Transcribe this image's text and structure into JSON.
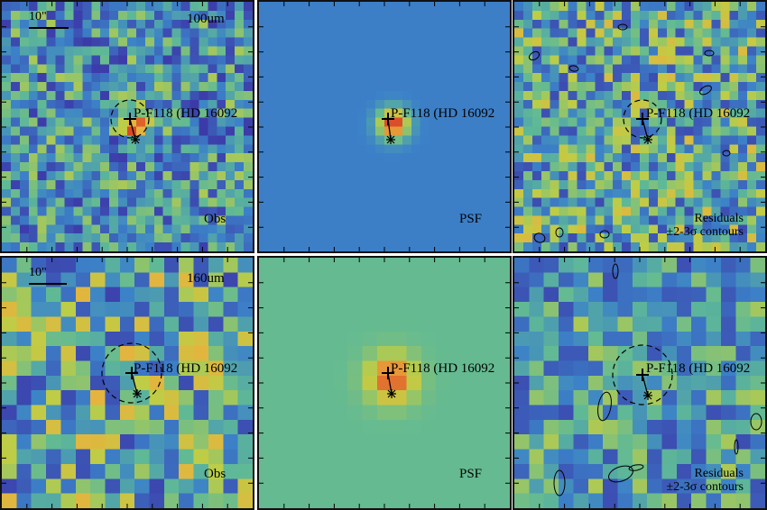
{
  "figure": {
    "source_label": "P-F118 (HD 16092",
    "scale_label": "10\"",
    "rows": [
      {
        "band_label": "100um",
        "obs_label": "Obs",
        "psf_label": "PSF",
        "residual_label_line1": "Residuals",
        "residual_label_line2": "±2-3σ contours"
      },
      {
        "band_label": "160um",
        "obs_label": "Obs",
        "psf_label": "PSF",
        "residual_label_line1": "Residuals",
        "residual_label_line2": "±2-3σ contours"
      }
    ]
  },
  "colors": {
    "frame": "#111111",
    "psf_background_row1": "#4a8fc0",
    "psf_background_row2": "#5cb08a",
    "peak": "#e0402a"
  },
  "markers": {
    "source_cross": "+",
    "star_marker": "*",
    "aperture": "dashed-circle"
  }
}
